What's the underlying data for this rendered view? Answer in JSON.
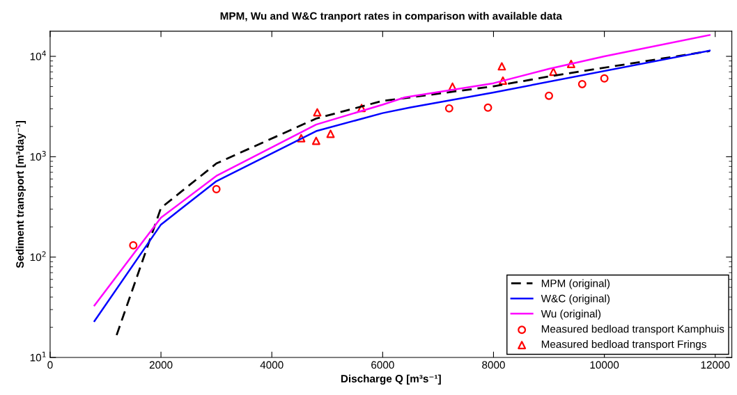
{
  "chart_data": {
    "type": "line",
    "title": "MPM, Wu and W&C tranport rates in comparison with available data",
    "xlabel": "Discharge Q [m³s⁻¹]",
    "ylabel": "Sediment transport [m³day⁻¹]",
    "log": "y",
    "xlim": [
      0,
      12300
    ],
    "ylim": [
      10,
      17800
    ],
    "xticks": [
      0,
      2000,
      4000,
      6000,
      8000,
      10000,
      12000
    ],
    "yticks": [
      {
        "value": 10,
        "label": "10$^{1}$"
      },
      {
        "value": 100,
        "label": "10$^{2}$"
      },
      {
        "value": 1000,
        "label": "10$^{3}$"
      },
      {
        "value": 10000,
        "label": "10$^{4}$"
      }
    ],
    "grid": false,
    "legend": "bottom right",
    "series": [
      {
        "name": "MPM (original)",
        "color": "#000000",
        "line_style": "dashed",
        "marker": "none",
        "x": [
          1200,
          2000,
          3000,
          4800,
          6000,
          6500,
          8000,
          9000,
          11900
        ],
        "values": [
          16.7,
          309,
          857,
          2400,
          3600,
          3900,
          5030,
          6300,
          11300
        ]
      },
      {
        "name": "W&C (original)",
        "color": "#0000ff",
        "line_style": "solid",
        "marker": "none",
        "x": [
          800,
          2000,
          3000,
          4800,
          6000,
          6500,
          8000,
          11900
        ],
        "values": [
          23,
          211,
          570,
          1800,
          2720,
          3100,
          4370,
          11400
        ]
      },
      {
        "name": "Wu (original)",
        "color": "#ff00ff",
        "line_style": "solid",
        "marker": "none",
        "x": [
          800,
          2000,
          3000,
          4800,
          6000,
          6400,
          8000,
          9000,
          10000,
          11900
        ],
        "values": [
          33,
          247,
          644,
          2090,
          3300,
          3900,
          5400,
          7500,
          10000,
          16300
        ]
      },
      {
        "name": "Measured bedload transport Kamphuis",
        "type": "scatter",
        "color": "#ff0000",
        "marker": "circle",
        "x": [
          1500,
          3000,
          7200,
          7900,
          9000,
          9600,
          10000
        ],
        "values": [
          131,
          475,
          3030,
          3080,
          4050,
          5290,
          6030
        ]
      },
      {
        "name": "Measured bedload transport Frings",
        "type": "scatter",
        "color": "#ff0000",
        "marker": "triangle",
        "x": [
          4530,
          4820,
          4800,
          5060,
          5620,
          7260,
          8150,
          8170,
          9080,
          9400
        ],
        "values": [
          1530,
          2770,
          1440,
          1690,
          3060,
          4990,
          7950,
          5730,
          7020,
          8400
        ]
      }
    ]
  }
}
